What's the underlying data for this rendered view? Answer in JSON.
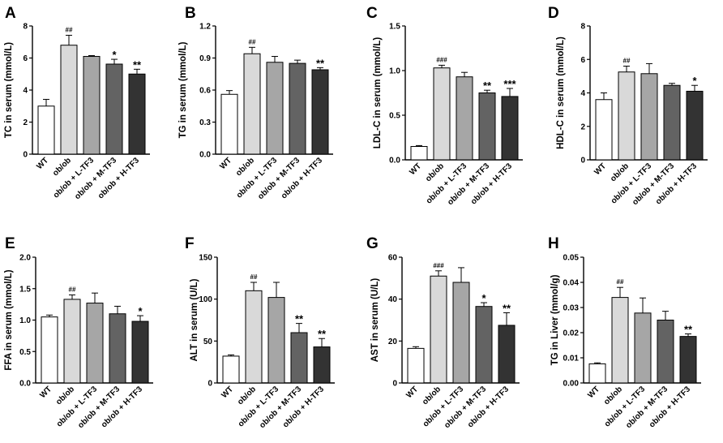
{
  "colors": {
    "WT": "#ffffff",
    "ob/ob": "#d9d9d9",
    "ob/ob + L-TF3": "#a6a6a6",
    "ob/ob + M-TF3": "#636363",
    "ob/ob + H-TF3": "#333333",
    "axis": "#000000"
  },
  "chart_data": [
    {
      "panel": "A",
      "type": "bar",
      "ylabel": "TC in serum (mmol/L)",
      "ylim": [
        0,
        8
      ],
      "yticks": [
        "0",
        "2",
        "4",
        "6",
        "8"
      ],
      "categories": [
        "WT",
        "ob/ob",
        "ob/ob + L-TF3",
        "ob/ob + M-TF3",
        "ob/ob + H-TF3"
      ],
      "values": [
        3.0,
        6.8,
        6.1,
        5.62,
        5.0
      ],
      "errors": [
        0.42,
        0.62,
        0.05,
        0.3,
        0.3
      ],
      "annotations": [
        "",
        "##",
        "",
        "*",
        "**"
      ]
    },
    {
      "panel": "B",
      "type": "bar",
      "ylabel": "TG in serum (mmol/L)",
      "ylim": [
        0,
        1.2
      ],
      "yticks": [
        "0.0",
        "0.3",
        "0.6",
        "0.9",
        "1.2"
      ],
      "categories": [
        "WT",
        "ob/ob",
        "ob/ob + L-TF3",
        "ob/ob + M-TF3",
        "ob/ob + H-TF3"
      ],
      "values": [
        0.56,
        0.94,
        0.86,
        0.85,
        0.79
      ],
      "errors": [
        0.035,
        0.06,
        0.055,
        0.03,
        0.02
      ],
      "annotations": [
        "",
        "##",
        "",
        "",
        "**"
      ]
    },
    {
      "panel": "C",
      "type": "bar",
      "ylabel": "LDL-C in serum (mmol/L)",
      "ylim": [
        0,
        1.5
      ],
      "yticks": [
        "0.0",
        "0.5",
        "1.0",
        "1.5"
      ],
      "categories": [
        "WT",
        "ob/ob",
        "ob/ob + L-TF3",
        "ob/ob + M-TF3",
        "ob/ob + H-TF3"
      ],
      "values": [
        0.15,
        1.03,
        0.93,
        0.75,
        0.71
      ],
      "errors": [
        0.01,
        0.03,
        0.05,
        0.03,
        0.09
      ],
      "annotations": [
        "",
        "###",
        "",
        "**",
        "***"
      ]
    },
    {
      "panel": "D",
      "type": "bar",
      "ylabel": "HDL-C in serum (mmol/L)",
      "ylim": [
        0,
        8
      ],
      "yticks": [
        "0",
        "2",
        "4",
        "6",
        "8"
      ],
      "categories": [
        "WT",
        "ob/ob",
        "ob/ob + L-TF3",
        "ob/ob + M-TF3",
        "ob/ob + H-TF3"
      ],
      "values": [
        3.6,
        5.25,
        5.15,
        4.45,
        4.1
      ],
      "errors": [
        0.4,
        0.35,
        0.6,
        0.12,
        0.35
      ],
      "annotations": [
        "",
        "##",
        "",
        "",
        "*"
      ]
    },
    {
      "panel": "E",
      "type": "bar",
      "ylabel": "FFA in serum (mmol/L)",
      "ylim": [
        0,
        2
      ],
      "yticks": [
        "0.0",
        "0.5",
        "1.0",
        "1.5",
        "2.0"
      ],
      "categories": [
        "WT",
        "ob/ob",
        "ob/ob + L-TF3",
        "ob/ob + M-TF3",
        "ob/ob + H-TF3"
      ],
      "values": [
        1.05,
        1.33,
        1.27,
        1.1,
        0.98
      ],
      "errors": [
        0.03,
        0.07,
        0.16,
        0.12,
        0.09
      ],
      "annotations": [
        "",
        "##",
        "",
        "",
        "*"
      ]
    },
    {
      "panel": "F",
      "type": "bar",
      "ylabel": "ALT in serum (U/L)",
      "ylim": [
        0,
        150
      ],
      "yticks": [
        "0",
        "50",
        "100",
        "150"
      ],
      "categories": [
        "WT",
        "ob/ob",
        "ob/ob + L-TF3",
        "ob/ob + M-TF3",
        "ob/ob + H-TF3"
      ],
      "values": [
        32,
        110,
        102,
        60,
        43
      ],
      "errors": [
        1.5,
        10,
        18,
        11,
        10
      ],
      "annotations": [
        "",
        "##",
        "",
        "**",
        "**"
      ]
    },
    {
      "panel": "G",
      "type": "bar",
      "ylabel": "AST in serum (U/L)",
      "ylim": [
        0,
        60
      ],
      "yticks": [
        "0",
        "20",
        "40",
        "60"
      ],
      "categories": [
        "WT",
        "ob/ob",
        "ob/ob + L-TF3",
        "ob/ob + M-TF3",
        "ob/ob + H-TF3"
      ],
      "values": [
        16.5,
        51,
        48,
        36.5,
        27.5
      ],
      "errors": [
        0.8,
        2.5,
        7,
        1.8,
        6
      ],
      "annotations": [
        "",
        "###",
        "",
        "*",
        "**"
      ]
    },
    {
      "panel": "H",
      "type": "bar",
      "ylabel": "TG in Liver (mmol/g)",
      "ylim": [
        0,
        0.05
      ],
      "yticks": [
        "0.00",
        "0.01",
        "0.02",
        "0.03",
        "0.04",
        "0.05"
      ],
      "categories": [
        "WT",
        "ob/ob",
        "ob/ob + L-TF3",
        "ob/ob + M-TF3",
        "ob/ob + H-TF3"
      ],
      "values": [
        0.0076,
        0.034,
        0.0278,
        0.025,
        0.0185
      ],
      "errors": [
        0.0004,
        0.004,
        0.006,
        0.0035,
        0.001
      ],
      "annotations": [
        "",
        "##",
        "",
        "",
        "**"
      ]
    }
  ]
}
